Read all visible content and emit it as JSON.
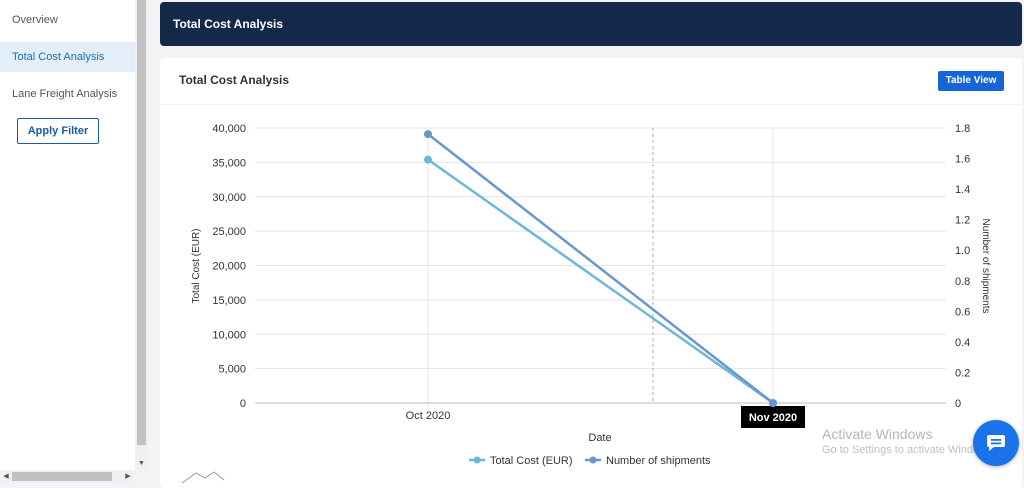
{
  "sidebar": {
    "items": [
      {
        "label": "Overview"
      },
      {
        "label": "Total Cost Analysis"
      },
      {
        "label": "Lane Freight Analysis"
      }
    ],
    "apply_filter": "Apply Filter"
  },
  "header": {
    "title": "Total Cost Analysis"
  },
  "card": {
    "title": "Total Cost Analysis",
    "table_view": "Table View"
  },
  "chart_data": {
    "type": "line",
    "xlabel": "Date",
    "ylabel_left": "Total Cost (EUR)",
    "ylabel_right": "Number of shipments",
    "categories": [
      "Oct 2020",
      "Nov 2020"
    ],
    "ylim_left": [
      0,
      40000
    ],
    "yticks_left": [
      "40,000",
      "35,000",
      "30,000",
      "25,000",
      "20,000",
      "15,000",
      "10,000",
      "5,000",
      "0"
    ],
    "ylim_right": [
      0,
      1.8
    ],
    "yticks_right": [
      "1.8",
      "1.6",
      "1.4",
      "1.2",
      "1.0",
      "0.8",
      "0.6",
      "0.4",
      "0.2",
      "0"
    ],
    "series": [
      {
        "name": "Total Cost (EUR)",
        "axis": "left",
        "values": [
          35400,
          0
        ],
        "color": "#6bb8d8"
      },
      {
        "name": "Number of shipments",
        "axis": "right",
        "values": [
          1.76,
          0
        ],
        "color": "#6a96cf"
      }
    ],
    "tooltip": "Nov 2020",
    "grid": true,
    "legend": "bottom"
  },
  "watermark": {
    "line1": "Activate Windows",
    "line2": "Go to Settings to activate Windows."
  },
  "icons": {
    "chat": "chat-icon"
  },
  "colors": {
    "header_bg": "#14294a",
    "accent": "#1565d8"
  }
}
